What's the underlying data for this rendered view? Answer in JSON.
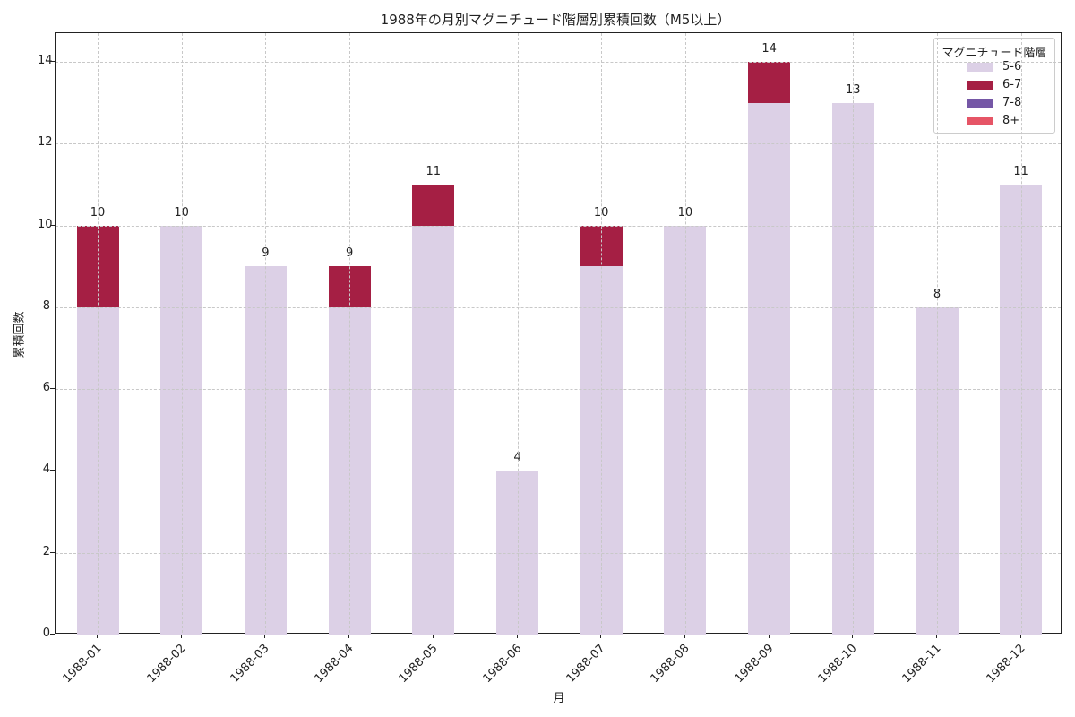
{
  "chart_data": {
    "type": "bar",
    "stacked": true,
    "title": "1988年の月別マグニチュード階層別累積回数（M5以上）",
    "xlabel": "月",
    "ylabel": "累積回数",
    "categories": [
      "1988-01",
      "1988-02",
      "1988-03",
      "1988-04",
      "1988-05",
      "1988-06",
      "1988-07",
      "1988-08",
      "1988-09",
      "1988-10",
      "1988-11",
      "1988-12"
    ],
    "series": [
      {
        "name": "5-6",
        "color": "#dcd0e6",
        "values": [
          8,
          10,
          9,
          8,
          10,
          4,
          9,
          10,
          13,
          13,
          8,
          11
        ]
      },
      {
        "name": "6-7",
        "color": "#a51f44",
        "values": [
          2,
          0,
          0,
          1,
          1,
          0,
          1,
          0,
          1,
          0,
          0,
          0
        ]
      },
      {
        "name": "7-8",
        "color": "#7557a6",
        "values": [
          0,
          0,
          0,
          0,
          0,
          0,
          0,
          0,
          0,
          0,
          0,
          0
        ]
      },
      {
        "name": "8+",
        "color": "#e65566",
        "values": [
          0,
          0,
          0,
          0,
          0,
          0,
          0,
          0,
          0,
          0,
          0,
          0
        ]
      }
    ],
    "totals": [
      10,
      10,
      9,
      9,
      11,
      4,
      10,
      10,
      14,
      13,
      8,
      11
    ],
    "yticks": [
      0,
      2,
      4,
      6,
      8,
      10,
      12,
      14
    ],
    "ylim": [
      0,
      14.7
    ],
    "grid": true,
    "legend": {
      "title": "マグニチュード階層",
      "position": "upper right"
    }
  }
}
